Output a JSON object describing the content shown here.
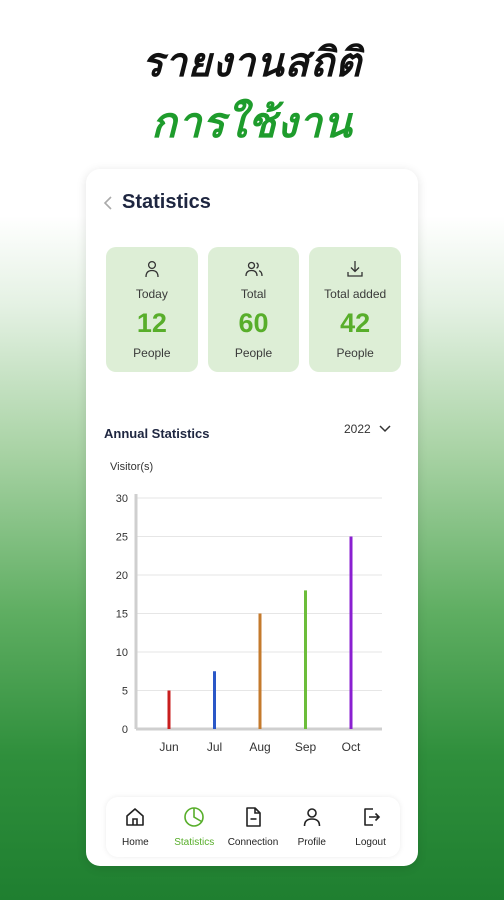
{
  "promo": {
    "line1": "รายงานสถิติ",
    "line2": "การใช้งาน"
  },
  "header": {
    "title": "Statistics",
    "back_icon": "chevron-left-icon"
  },
  "cards": [
    {
      "icon": "person-icon",
      "label": "Today",
      "value": "12",
      "unit": "People"
    },
    {
      "icon": "people-icon",
      "label": "Total",
      "value": "60",
      "unit": "People"
    },
    {
      "icon": "download-icon",
      "label": "Total added",
      "value": "42",
      "unit": "People"
    }
  ],
  "annual": {
    "title": "Annual Statistics",
    "year": "2022"
  },
  "chart_data": {
    "type": "bar",
    "ylabel": "Visitor(s)",
    "categories": [
      "Jun",
      "Jul",
      "Aug",
      "Sep",
      "Oct"
    ],
    "values": [
      5,
      7.5,
      15,
      18,
      25
    ],
    "colors": [
      "#c81e1e",
      "#2a57c7",
      "#c47a2c",
      "#6cbd3a",
      "#8a1fd1"
    ],
    "ylim": [
      0,
      30
    ],
    "yticks": [
      0,
      5,
      10,
      15,
      20,
      25,
      30
    ],
    "grid": true
  },
  "tabs": [
    {
      "icon": "home-icon",
      "label": "Home",
      "active": false
    },
    {
      "icon": "pie-chart-icon",
      "label": "Statistics",
      "active": true
    },
    {
      "icon": "document-icon",
      "label": "Connection",
      "active": false
    },
    {
      "icon": "user-icon",
      "label": "Profile",
      "active": false
    },
    {
      "icon": "logout-icon",
      "label": "Logout",
      "active": false
    }
  ],
  "colors": {
    "accent": "#58ae2b",
    "card_bg": "#ddeed6",
    "heading": "#1e2640",
    "promo_green": "#1e9c2c"
  }
}
